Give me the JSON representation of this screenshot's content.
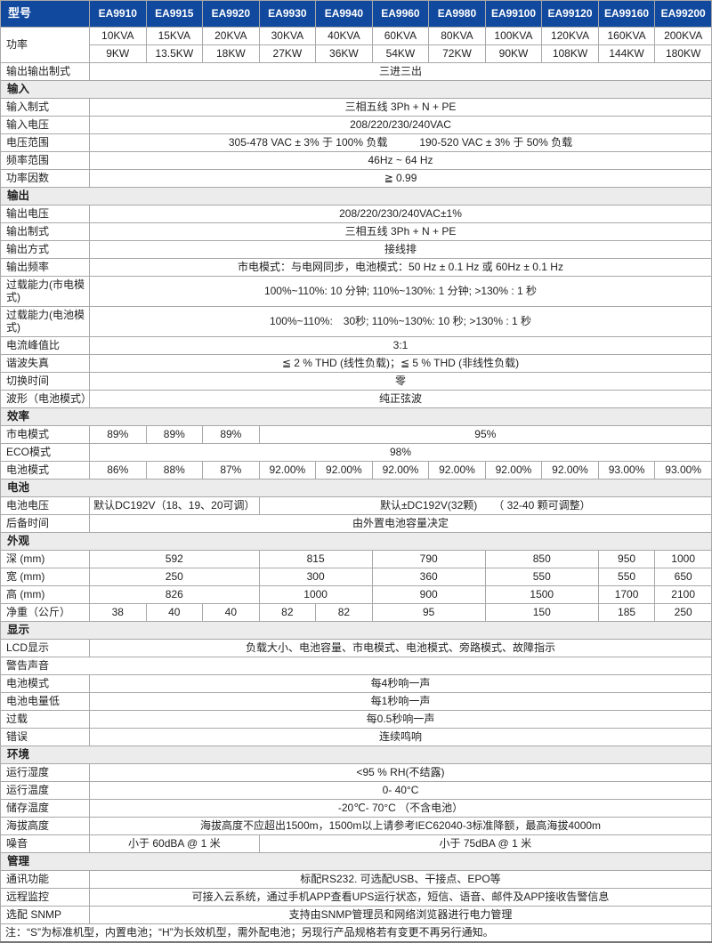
{
  "colors": {
    "header_bg": "#11499e",
    "header_text": "#ffffff",
    "section_bg": "#ececec",
    "border": "#a8a8a8",
    "text": "#222222"
  },
  "table": {
    "rows": [
      {
        "name": "model-header-row",
        "cells": [
          {
            "t": "型号",
            "k": "lh"
          },
          {
            "t": "EA9910",
            "k": "mh"
          },
          {
            "t": "EA9915",
            "k": "mh"
          },
          {
            "t": "EA9920",
            "k": "mh"
          },
          {
            "t": "EA9930",
            "k": "mh"
          },
          {
            "t": "EA9940",
            "k": "mh"
          },
          {
            "t": "EA9960",
            "k": "mh"
          },
          {
            "t": "EA9980",
            "k": "mh"
          },
          {
            "t": "EA99100",
            "k": "mh"
          },
          {
            "t": "EA99120",
            "k": "mh"
          },
          {
            "t": "EA99160",
            "k": "mh"
          },
          {
            "t": "EA99200",
            "k": "mh"
          }
        ]
      },
      {
        "name": "power-kva-row",
        "cells": [
          {
            "t": "功率",
            "k": "label",
            "rs": 2
          },
          {
            "t": "10KVA",
            "k": "val"
          },
          {
            "t": "15KVA",
            "k": "val"
          },
          {
            "t": "20KVA",
            "k": "val"
          },
          {
            "t": "30KVA",
            "k": "val"
          },
          {
            "t": "40KVA",
            "k": "val"
          },
          {
            "t": "60KVA",
            "k": "val"
          },
          {
            "t": "80KVA",
            "k": "val"
          },
          {
            "t": "100KVA",
            "k": "val"
          },
          {
            "t": "120KVA",
            "k": "val"
          },
          {
            "t": "160KVA",
            "k": "val"
          },
          {
            "t": "200KVA",
            "k": "val"
          }
        ]
      },
      {
        "name": "power-kw-row",
        "cells": [
          {
            "t": "9KW",
            "k": "val"
          },
          {
            "t": "13.5KW",
            "k": "val"
          },
          {
            "t": "18KW",
            "k": "val"
          },
          {
            "t": "27KW",
            "k": "val"
          },
          {
            "t": "36KW",
            "k": "val"
          },
          {
            "t": "54KW",
            "k": "val"
          },
          {
            "t": "72KW",
            "k": "val"
          },
          {
            "t": "90KW",
            "k": "val"
          },
          {
            "t": "108KW",
            "k": "val"
          },
          {
            "t": "144KW",
            "k": "val"
          },
          {
            "t": "180KW",
            "k": "val"
          }
        ]
      },
      {
        "name": "io-type-row",
        "cells": [
          {
            "t": "输出输出制式",
            "k": "label"
          },
          {
            "t": "三进三出",
            "k": "val",
            "s": 11
          }
        ]
      },
      {
        "name": "section-input",
        "cells": [
          {
            "t": "输入",
            "k": "sec",
            "s": 12
          }
        ]
      },
      {
        "name": "input-wiring-row",
        "cells": [
          {
            "t": "输入制式",
            "k": "label"
          },
          {
            "t": "三相五线 3Ph + N + PE",
            "k": "val",
            "s": 11
          }
        ]
      },
      {
        "name": "input-voltage-row",
        "cells": [
          {
            "t": "输入电压",
            "k": "label"
          },
          {
            "t": "208/220/230/240VAC",
            "k": "val",
            "s": 11
          }
        ]
      },
      {
        "name": "voltage-range-row",
        "cells": [
          {
            "t": "电压范围",
            "k": "label"
          },
          {
            "t": "305-478 VAC ± 3% 于 100% 负载　　　190-520 VAC ± 3% 于 50% 负载",
            "k": "val",
            "s": 11
          }
        ]
      },
      {
        "name": "freq-range-row",
        "cells": [
          {
            "t": "频率范围",
            "k": "label"
          },
          {
            "t": "46Hz ~ 64 Hz",
            "k": "val",
            "s": 11
          }
        ]
      },
      {
        "name": "power-factor-row",
        "cells": [
          {
            "t": "功率因数",
            "k": "label"
          },
          {
            "t": "≧ 0.99",
            "k": "val",
            "s": 11
          }
        ]
      },
      {
        "name": "section-output",
        "cells": [
          {
            "t": "输出",
            "k": "sec",
            "s": 12
          }
        ]
      },
      {
        "name": "output-voltage-row",
        "cells": [
          {
            "t": "输出电压",
            "k": "label"
          },
          {
            "t": "208/220/230/240VAC±1%",
            "k": "val",
            "s": 11
          }
        ]
      },
      {
        "name": "output-wiring-row",
        "cells": [
          {
            "t": "输出制式",
            "k": "label"
          },
          {
            "t": "三相五线 3Ph + N + PE",
            "k": "val",
            "s": 11
          }
        ]
      },
      {
        "name": "output-mode-row",
        "cells": [
          {
            "t": "输出方式",
            "k": "label"
          },
          {
            "t": "接线排",
            "k": "val",
            "s": 11
          }
        ]
      },
      {
        "name": "output-freq-row",
        "cells": [
          {
            "t": "输出频率",
            "k": "label"
          },
          {
            "t": "市电模式：与电网同步，电池模式：50 Hz ± 0.1 Hz 或 60Hz ± 0.1 Hz",
            "k": "val",
            "s": 11
          }
        ]
      },
      {
        "name": "overload-mains-row",
        "h": "tall",
        "cells": [
          {
            "t": "过载能力(市电模式)",
            "k": "label"
          },
          {
            "t": "100%~110%: 10 分钟; 110%~130%: 1 分钟; >130% : 1 秒",
            "k": "val",
            "s": 11
          }
        ]
      },
      {
        "name": "overload-battery-row",
        "h": "tall",
        "cells": [
          {
            "t": "过载能力(电池模式)",
            "k": "label"
          },
          {
            "t": "100%~110%:　30秒; 110%~130%: 10 秒; >130% : 1 秒",
            "k": "val",
            "s": 11
          }
        ]
      },
      {
        "name": "crest-factor-row",
        "cells": [
          {
            "t": "电流峰值比",
            "k": "label"
          },
          {
            "t": "3:1",
            "k": "val",
            "s": 11
          }
        ]
      },
      {
        "name": "thd-row",
        "cells": [
          {
            "t": "谐波失真",
            "k": "label"
          },
          {
            "t": "≦ 2 % THD (线性负载)；≦ 5 % THD (非线性负载)",
            "k": "val",
            "s": 11
          }
        ]
      },
      {
        "name": "transfer-time-row",
        "cells": [
          {
            "t": "切换时间",
            "k": "label"
          },
          {
            "t": "零",
            "k": "val",
            "s": 11
          }
        ]
      },
      {
        "name": "waveform-row",
        "cells": [
          {
            "t": "波形（电池模式）",
            "k": "label"
          },
          {
            "t": "纯正弦波",
            "k": "val",
            "s": 11
          }
        ]
      },
      {
        "name": "section-efficiency",
        "cells": [
          {
            "t": "效率",
            "k": "sec",
            "s": 12
          }
        ]
      },
      {
        "name": "eff-mains-row",
        "cells": [
          {
            "t": "市电模式",
            "k": "label"
          },
          {
            "t": "89%",
            "k": "val"
          },
          {
            "t": "89%",
            "k": "val"
          },
          {
            "t": "89%",
            "k": "val"
          },
          {
            "t": "95%",
            "k": "val",
            "s": 8
          }
        ]
      },
      {
        "name": "eff-eco-row",
        "cells": [
          {
            "t": "ECO模式",
            "k": "label"
          },
          {
            "t": "98%",
            "k": "val",
            "s": 11
          }
        ]
      },
      {
        "name": "eff-battery-row",
        "cells": [
          {
            "t": "电池模式",
            "k": "label"
          },
          {
            "t": "86%",
            "k": "val"
          },
          {
            "t": "88%",
            "k": "val"
          },
          {
            "t": "87%",
            "k": "val"
          },
          {
            "t": "92.00%",
            "k": "val"
          },
          {
            "t": "92.00%",
            "k": "val"
          },
          {
            "t": "92.00%",
            "k": "val"
          },
          {
            "t": "92.00%",
            "k": "val"
          },
          {
            "t": "92.00%",
            "k": "val"
          },
          {
            "t": "92.00%",
            "k": "val"
          },
          {
            "t": "93.00%",
            "k": "val"
          },
          {
            "t": "93.00%",
            "k": "val"
          }
        ]
      },
      {
        "name": "section-battery",
        "cells": [
          {
            "t": "电池",
            "k": "sec",
            "s": 12
          }
        ]
      },
      {
        "name": "battery-voltage-row",
        "cells": [
          {
            "t": "电池电压",
            "k": "label"
          },
          {
            "t": "默认DC192V（18、19、20可调）",
            "k": "val",
            "s": 3
          },
          {
            "t": "默认±DC192V(32颗)　　（ 32-40 颗可调整）",
            "k": "val",
            "s": 8
          }
        ]
      },
      {
        "name": "backup-time-row",
        "cells": [
          {
            "t": "后备时间",
            "k": "label"
          },
          {
            "t": "由外置电池容量决定",
            "k": "val",
            "s": 11
          }
        ]
      },
      {
        "name": "section-appearance",
        "cells": [
          {
            "t": "外观",
            "k": "sec",
            "s": 12
          }
        ]
      },
      {
        "name": "depth-row",
        "cells": [
          {
            "t": "深 (mm)",
            "k": "label"
          },
          {
            "t": "592",
            "k": "val",
            "s": 3
          },
          {
            "t": "815",
            "k": "val",
            "s": 2
          },
          {
            "t": "790",
            "k": "val",
            "s": 2
          },
          {
            "t": "850",
            "k": "val",
            "s": 2
          },
          {
            "t": "950",
            "k": "val"
          },
          {
            "t": "1000",
            "k": "val"
          }
        ]
      },
      {
        "name": "width-row",
        "cells": [
          {
            "t": "宽 (mm)",
            "k": "label"
          },
          {
            "t": "250",
            "k": "val",
            "s": 3
          },
          {
            "t": "300",
            "k": "val",
            "s": 2
          },
          {
            "t": "360",
            "k": "val",
            "s": 2
          },
          {
            "t": "550",
            "k": "val",
            "s": 2
          },
          {
            "t": "550",
            "k": "val"
          },
          {
            "t": "650",
            "k": "val"
          }
        ]
      },
      {
        "name": "height-row",
        "cells": [
          {
            "t": "高 (mm)",
            "k": "label"
          },
          {
            "t": "826",
            "k": "val",
            "s": 3
          },
          {
            "t": "1000",
            "k": "val",
            "s": 2
          },
          {
            "t": "900",
            "k": "val",
            "s": 2
          },
          {
            "t": "1500",
            "k": "val",
            "s": 2
          },
          {
            "t": "1700",
            "k": "val"
          },
          {
            "t": "2100",
            "k": "val"
          }
        ]
      },
      {
        "name": "weight-row",
        "cells": [
          {
            "t": "净重（公斤）",
            "k": "label"
          },
          {
            "t": "38",
            "k": "val"
          },
          {
            "t": "40",
            "k": "val"
          },
          {
            "t": "40",
            "k": "val"
          },
          {
            "t": "82",
            "k": "val"
          },
          {
            "t": "82",
            "k": "val"
          },
          {
            "t": "95",
            "k": "val",
            "s": 2
          },
          {
            "t": "150",
            "k": "val",
            "s": 2
          },
          {
            "t": "185",
            "k": "val"
          },
          {
            "t": "250",
            "k": "val"
          }
        ]
      },
      {
        "name": "section-display",
        "cells": [
          {
            "t": "显示",
            "k": "sec",
            "s": 12
          }
        ]
      },
      {
        "name": "lcd-row",
        "cells": [
          {
            "t": "LCD显示",
            "k": "label"
          },
          {
            "t": "负载大小、电池容量、市电模式、电池模式、旁路模式、故障指示",
            "k": "val",
            "s": 11
          }
        ]
      },
      {
        "name": "alarm-subheader-row",
        "cells": [
          {
            "t": "警告声音",
            "k": "full",
            "s": 12
          }
        ]
      },
      {
        "name": "alarm-battery-row",
        "cells": [
          {
            "t": "电池模式",
            "k": "label"
          },
          {
            "t": "每4秒响一声",
            "k": "val",
            "s": 11
          }
        ]
      },
      {
        "name": "alarm-lowbattery-row",
        "cells": [
          {
            "t": "电池电量低",
            "k": "label"
          },
          {
            "t": "每1秒响一声",
            "k": "val",
            "s": 11
          }
        ]
      },
      {
        "name": "alarm-overload-row",
        "cells": [
          {
            "t": "过载",
            "k": "label"
          },
          {
            "t": "每0.5秒响一声",
            "k": "val",
            "s": 11
          }
        ]
      },
      {
        "name": "alarm-fault-row",
        "cells": [
          {
            "t": "错误",
            "k": "label"
          },
          {
            "t": "连续鸣响",
            "k": "val",
            "s": 11
          }
        ]
      },
      {
        "name": "section-environment",
        "cells": [
          {
            "t": "环境",
            "k": "sec",
            "s": 12
          }
        ]
      },
      {
        "name": "humidity-row",
        "cells": [
          {
            "t": "运行湿度",
            "k": "label"
          },
          {
            "t": "<95 % RH(不结露)",
            "k": "val",
            "s": 11
          }
        ]
      },
      {
        "name": "operating-temp-row",
        "cells": [
          {
            "t": "运行温度",
            "k": "label"
          },
          {
            "t": "0- 40°C",
            "k": "val",
            "s": 11
          }
        ]
      },
      {
        "name": "storage-temp-row",
        "cells": [
          {
            "t": "储存温度",
            "k": "label"
          },
          {
            "t": "-20℃- 70°C （不含电池）",
            "k": "val",
            "s": 11
          }
        ]
      },
      {
        "name": "altitude-row",
        "cells": [
          {
            "t": "海拔高度",
            "k": "label"
          },
          {
            "t": "海拔高度不应超出1500m，1500m以上请参考IEC62040-3标准降额，最高海拔4000m",
            "k": "val",
            "s": 11
          }
        ]
      },
      {
        "name": "noise-row",
        "cells": [
          {
            "t": "噪音",
            "k": "label"
          },
          {
            "t": "小于 60dBA @ 1 米",
            "k": "val",
            "s": 3
          },
          {
            "t": "小于 75dBA @ 1 米",
            "k": "val",
            "s": 8
          }
        ]
      },
      {
        "name": "section-management",
        "cells": [
          {
            "t": "管理",
            "k": "sec",
            "s": 12
          }
        ]
      },
      {
        "name": "communication-row",
        "cells": [
          {
            "t": "通讯功能",
            "k": "label"
          },
          {
            "t": "标配RS232. 可选配USB、干接点、EPO等",
            "k": "val",
            "s": 11
          }
        ]
      },
      {
        "name": "remote-monitor-row",
        "cells": [
          {
            "t": "远程监控",
            "k": "label"
          },
          {
            "t": "可接入云系统，通过手机APP查看UPS运行状态，短信、语音、邮件及APP接收告警信息",
            "k": "val",
            "s": 11
          }
        ]
      },
      {
        "name": "snmp-row",
        "cells": [
          {
            "t": "选配 SNMP",
            "k": "label"
          },
          {
            "t": "支持由SNMP管理员和网络浏览器进行电力管理",
            "k": "val",
            "s": 11
          }
        ]
      },
      {
        "name": "footnote-row",
        "cells": [
          {
            "t": "注：“S”为标准机型，内置电池；“H”为长效机型，需外配电池；另现行产品规格若有变更不再另行通知。",
            "k": "note",
            "s": 12
          }
        ]
      }
    ]
  }
}
